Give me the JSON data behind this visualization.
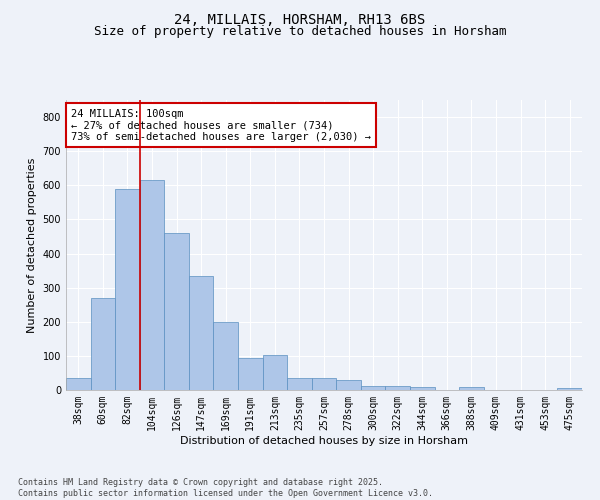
{
  "title": "24, MILLAIS, HORSHAM, RH13 6BS",
  "subtitle": "Size of property relative to detached houses in Horsham",
  "xlabel": "Distribution of detached houses by size in Horsham",
  "ylabel": "Number of detached properties",
  "categories": [
    "38sqm",
    "60sqm",
    "82sqm",
    "104sqm",
    "126sqm",
    "147sqm",
    "169sqm",
    "191sqm",
    "213sqm",
    "235sqm",
    "257sqm",
    "278sqm",
    "300sqm",
    "322sqm",
    "344sqm",
    "366sqm",
    "388sqm",
    "409sqm",
    "431sqm",
    "453sqm",
    "475sqm"
  ],
  "values": [
    35,
    270,
    590,
    615,
    460,
    335,
    200,
    95,
    103,
    35,
    35,
    30,
    12,
    12,
    10,
    0,
    8,
    0,
    0,
    0,
    5
  ],
  "bar_color": "#aec6e8",
  "bar_edge_color": "#5a8fc0",
  "red_line_x": 2.5,
  "red_line_color": "#cc0000",
  "annotation_text": "24 MILLAIS: 100sqm\n← 27% of detached houses are smaller (734)\n73% of semi-detached houses are larger (2,030) →",
  "annotation_box_color": "#ffffff",
  "annotation_box_edge_color": "#cc0000",
  "ylim": [
    0,
    850
  ],
  "yticks": [
    0,
    100,
    200,
    300,
    400,
    500,
    600,
    700,
    800
  ],
  "background_color": "#eef2f9",
  "grid_color": "#ffffff",
  "footer_text": "Contains HM Land Registry data © Crown copyright and database right 2025.\nContains public sector information licensed under the Open Government Licence v3.0.",
  "title_fontsize": 10,
  "subtitle_fontsize": 9,
  "axis_label_fontsize": 8,
  "tick_fontsize": 7,
  "annotation_fontsize": 7.5,
  "footer_fontsize": 6
}
